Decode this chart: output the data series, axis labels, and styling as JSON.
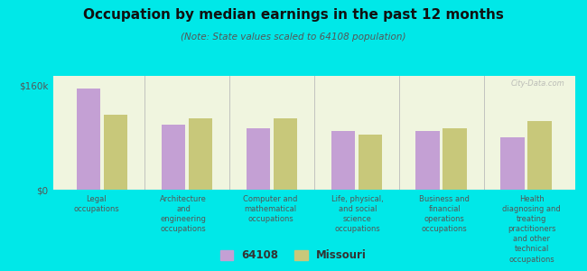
{
  "title": "Occupation by median earnings in the past 12 months",
  "subtitle": "(Note: State values scaled to 64108 population)",
  "background_color": "#00e8e8",
  "plot_bg_color": "#f0f5df",
  "categories": [
    "Legal\noccupations",
    "Architecture\nand\nengineering\noccupations",
    "Computer and\nmathematical\noccupations",
    "Life, physical,\nand social\nscience\noccupations",
    "Business and\nfinancial\noperations\noccupations",
    "Health\ndiagnosing and\ntreating\npractitioners\nand other\ntechnical\noccupations"
  ],
  "values_64108": [
    155000,
    100000,
    95000,
    90000,
    90000,
    80000
  ],
  "values_missouri": [
    115000,
    110000,
    110000,
    85000,
    95000,
    105000
  ],
  "color_64108": "#c4a0d4",
  "color_missouri": "#c8c87a",
  "ylim": [
    0,
    175000
  ],
  "yticks": [
    0,
    160000
  ],
  "ytick_labels": [
    "$0",
    "$160k"
  ],
  "legend_label_64108": "64108",
  "legend_label_missouri": "Missouri",
  "watermark": "City-Data.com"
}
